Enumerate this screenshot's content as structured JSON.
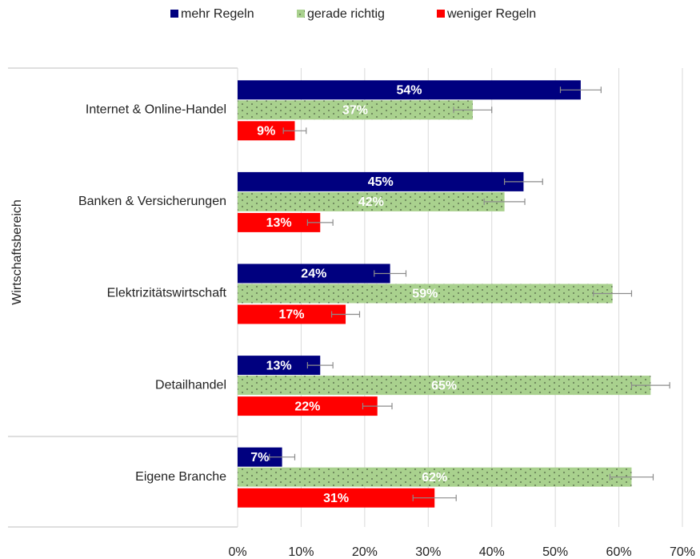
{
  "chart_data": {
    "type": "hbar",
    "y_label": "Wirtschaftsbereich",
    "categories": [
      "Internet & Online-Handel",
      "Banken & Versicherungen",
      "Elektrizitätswirtschaft",
      "Detailhandel",
      "Eigene Branche"
    ],
    "series": [
      {
        "name": "mehr Regeln",
        "color": "#00007f",
        "values": [
          54,
          45,
          24,
          13,
          7
        ],
        "value_labels": [
          "54%",
          "45%",
          "24%",
          "13%",
          "7%"
        ],
        "errors": [
          3.2,
          3,
          2.5,
          2,
          2
        ]
      },
      {
        "name": "gerade richtig",
        "color": "#a9d18e",
        "values": [
          37,
          42,
          59,
          65,
          62
        ],
        "value_labels": [
          "37%",
          "42%",
          "59%",
          "65%",
          "62%"
        ],
        "errors": [
          3,
          3.2,
          3,
          3,
          3.4
        ]
      },
      {
        "name": "weniger Regeln",
        "color": "#ff0000",
        "values": [
          9,
          13,
          17,
          22,
          31
        ],
        "value_labels": [
          "9%",
          "13%",
          "17%",
          "22%",
          "31%"
        ],
        "errors": [
          1.8,
          2,
          2.2,
          2.3,
          3.4
        ]
      }
    ],
    "xlim": [
      0,
      70
    ],
    "xticks": [
      {
        "value": 0,
        "label": "0%"
      },
      {
        "value": 10,
        "label": "10%"
      },
      {
        "value": 20,
        "label": "20%"
      },
      {
        "value": 30,
        "label": "30%"
      },
      {
        "value": 40,
        "label": "40%"
      },
      {
        "value": 50,
        "label": "50%"
      },
      {
        "value": 60,
        "label": "60%"
      },
      {
        "value": 70,
        "label": "70%"
      }
    ],
    "grid": true,
    "legend": "top"
  }
}
